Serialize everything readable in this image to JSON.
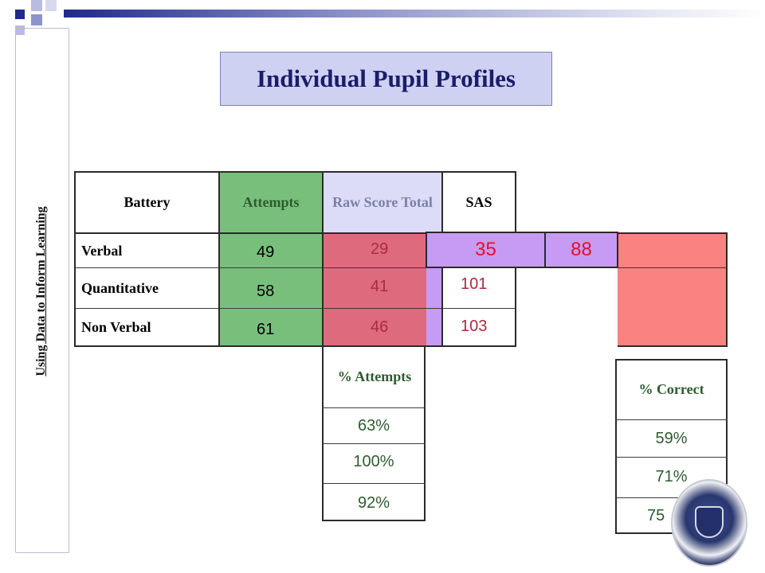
{
  "sidebar": {
    "vertical_text": "Using Data to Inform Learning"
  },
  "title": "Individual Pupil Profiles",
  "table": {
    "headers": {
      "battery": "Battery",
      "attempts": "Attempts",
      "raw_score": "Raw Score Total",
      "sas": "SAS"
    },
    "rows": [
      {
        "battery": "Verbal",
        "attempts": "49",
        "raw_score": "29"
      },
      {
        "battery": "Quantitative",
        "attempts": "58",
        "raw_score": "41",
        "sas": "101"
      },
      {
        "battery": "Non Verbal",
        "attempts": "61",
        "raw_score": "46",
        "sas": "103"
      }
    ]
  },
  "highlight": {
    "value1": "35",
    "value2": "88"
  },
  "pct_attempts": {
    "header": "% Attempts",
    "values": [
      "63%",
      "100%",
      "92%"
    ]
  },
  "pct_correct": {
    "header": "% Correct",
    "values": [
      "59%",
      "71%",
      "75"
    ]
  },
  "colors": {
    "attempts_fill": "#79bf7c",
    "raw_fill": "#de6a7e",
    "raw_header_fill": "#dcdcf8",
    "highlight_fill": "#c79bf4",
    "red_fill": "#fa8280",
    "title_fill": "#cfd1f2",
    "value_red": "#e0102a"
  },
  "icons": {
    "seal": "school-crest-icon"
  }
}
